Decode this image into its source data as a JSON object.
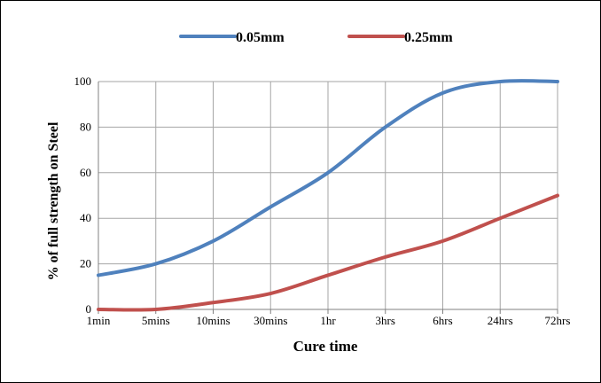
{
  "chart_data": {
    "type": "line",
    "categories": [
      "1min",
      "5mins",
      "10mins",
      "30mins",
      "1hr",
      "3hrs",
      "6hrs",
      "24hrs",
      "72hrs"
    ],
    "series": [
      {
        "name": "0.05mm",
        "color": "#4f81bd",
        "values": [
          15,
          20,
          30,
          45,
          60,
          80,
          95,
          100,
          100
        ]
      },
      {
        "name": "0.25mm",
        "color": "#c0504d",
        "values": [
          0,
          0,
          3,
          7,
          15,
          23,
          30,
          40,
          50
        ]
      }
    ],
    "xlabel": "Cure time",
    "ylabel": "% of full strength on Steel",
    "ylim": [
      0,
      100
    ],
    "yticks": [
      0,
      20,
      40,
      60,
      80,
      100
    ],
    "grid": true,
    "legend_position": "top"
  }
}
